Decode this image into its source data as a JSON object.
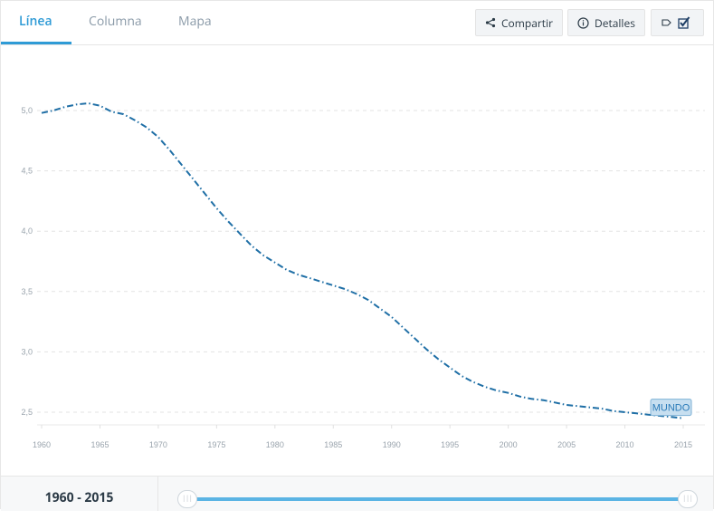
{
  "tabs": [
    {
      "label": "Línea",
      "active": true
    },
    {
      "label": "Columna",
      "active": false
    },
    {
      "label": "Mapa",
      "active": false
    }
  ],
  "toolbar": {
    "share_label": "Compartir",
    "details_label": "Detalles",
    "share_icon": "share-icon",
    "details_icon": "info-icon",
    "label_toggle_icon": "label-toggle-icon",
    "checkbox_icon": "checkbox-icon"
  },
  "range": {
    "label_start": "1960",
    "label_sep": " - ",
    "label_end": "2015",
    "start": 1960,
    "end": 2015,
    "handle_glyph": "|||"
  },
  "colors": {
    "accent": "#2f9bd6",
    "series": "#1f6fa6",
    "slider": "#5bb4e4"
  },
  "chart_data": {
    "type": "line",
    "title": "",
    "xlabel": "",
    "ylabel": "",
    "xlim": [
      1960,
      2015
    ],
    "ylim": [
      2.4,
      5.2
    ],
    "grid": true,
    "yticks": [
      5.0,
      4.5,
      4.0,
      3.5,
      3.0,
      2.5
    ],
    "ytick_labels": [
      "5,0",
      "4,5",
      "4,0",
      "3,5",
      "3,0",
      "2,5"
    ],
    "xticks": [
      1960,
      1965,
      1970,
      1975,
      1980,
      1985,
      1990,
      1995,
      2000,
      2005,
      2010,
      2015
    ],
    "xtick_labels": [
      "1960",
      "1965",
      "1970",
      "1975",
      "1980",
      "1985",
      "1990",
      "1995",
      "2000",
      "2005",
      "2010",
      "2015"
    ],
    "series": [
      {
        "name": "MUNDO",
        "line_style": "dash-dot",
        "x": [
          1960,
          1961,
          1962,
          1963,
          1964,
          1965,
          1966,
          1967,
          1968,
          1969,
          1970,
          1971,
          1972,
          1973,
          1974,
          1975,
          1976,
          1977,
          1978,
          1979,
          1980,
          1981,
          1982,
          1983,
          1984,
          1985,
          1986,
          1987,
          1988,
          1989,
          1990,
          1991,
          1992,
          1993,
          1994,
          1995,
          1996,
          1997,
          1998,
          1999,
          2000,
          2001,
          2002,
          2003,
          2004,
          2005,
          2006,
          2007,
          2008,
          2009,
          2010,
          2011,
          2012,
          2013,
          2014,
          2015
        ],
        "y": [
          4.98,
          5.0,
          5.03,
          5.05,
          5.06,
          5.04,
          4.99,
          4.97,
          4.92,
          4.86,
          4.78,
          4.67,
          4.55,
          4.43,
          4.31,
          4.19,
          4.08,
          3.98,
          3.88,
          3.8,
          3.74,
          3.68,
          3.64,
          3.61,
          3.58,
          3.55,
          3.52,
          3.48,
          3.43,
          3.36,
          3.29,
          3.2,
          3.11,
          3.02,
          2.94,
          2.87,
          2.8,
          2.75,
          2.71,
          2.68,
          2.66,
          2.63,
          2.61,
          2.6,
          2.58,
          2.56,
          2.55,
          2.54,
          2.53,
          2.51,
          2.5,
          2.49,
          2.48,
          2.47,
          2.46,
          2.45
        ]
      }
    ]
  }
}
